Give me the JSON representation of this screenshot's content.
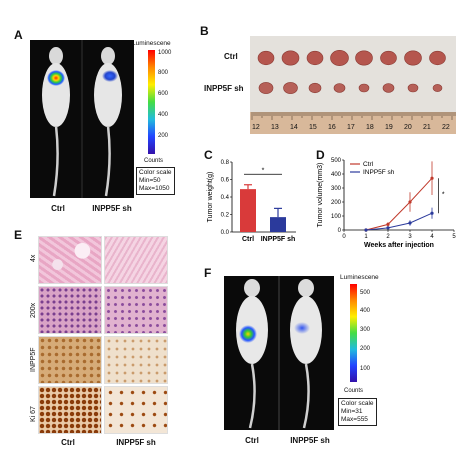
{
  "panels": {
    "A": {
      "label": "A",
      "colorbar_title": "Luminescene",
      "colorbar_ticks": [
        "1000",
        "800",
        "600",
        "400",
        "200"
      ],
      "counts_label": "Counts",
      "scale_box": [
        "Color scale",
        "Min=50",
        "Max=1050"
      ],
      "groups": [
        "Ctrl",
        "INPP5F sh"
      ]
    },
    "B": {
      "label": "B",
      "rows": [
        "Ctrl",
        "INPP5F sh"
      ],
      "ruler_ticks": [
        "12",
        "13",
        "14",
        "15",
        "16",
        "17",
        "18",
        "19",
        "20",
        "21",
        "22"
      ]
    },
    "C": {
      "label": "C"
    },
    "D": {
      "label": "D"
    },
    "E": {
      "label": "E",
      "rows": [
        "4x",
        "200x",
        "INPP5F",
        "Ki 67"
      ],
      "groups": [
        "Ctrl",
        "INPP5F sh"
      ]
    },
    "F": {
      "label": "F",
      "colorbar_title": "Luminescene",
      "colorbar_ticks": [
        "500",
        "400",
        "300",
        "200",
        "100"
      ],
      "counts_label": "Counts",
      "scale_box": [
        "Color scale",
        "Min=31",
        "Max=555"
      ],
      "groups": [
        "Ctrl",
        "INPP5F sh"
      ]
    }
  },
  "chart_data": [
    {
      "type": "bar",
      "panel": "C",
      "categories": [
        "Ctrl",
        "INPP5F sh"
      ],
      "values": [
        0.49,
        0.17
      ],
      "errors": [
        0.05,
        0.1
      ],
      "colors": [
        "#d93a3a",
        "#2b3a9c"
      ],
      "ylabel": "Tumor weight(g)",
      "yticks": [
        "0.0",
        "0.2",
        "0.4",
        "0.6",
        "0.8"
      ],
      "ylim": [
        0,
        0.8
      ],
      "significance": "*"
    },
    {
      "type": "line",
      "panel": "D",
      "x": [
        1,
        2,
        3,
        4
      ],
      "series": [
        {
          "name": "Ctrl",
          "values": [
            0,
            40,
            200,
            370
          ],
          "errors": [
            0,
            15,
            70,
            120
          ],
          "color": "#c0392b"
        },
        {
          "name": "INPP5F sh",
          "values": [
            0,
            15,
            50,
            120
          ],
          "errors": [
            0,
            5,
            20,
            40
          ],
          "color": "#2b3a9c"
        }
      ],
      "xlabel": "Weeks after injection",
      "ylabel": "Tumor volume(mm3)",
      "xticks": [
        "0",
        "1",
        "2",
        "3",
        "4",
        "5"
      ],
      "yticks": [
        "0",
        "100",
        "200",
        "300",
        "400",
        "500"
      ],
      "xlim": [
        0,
        5
      ],
      "ylim": [
        0,
        500
      ],
      "significance": "*"
    }
  ]
}
